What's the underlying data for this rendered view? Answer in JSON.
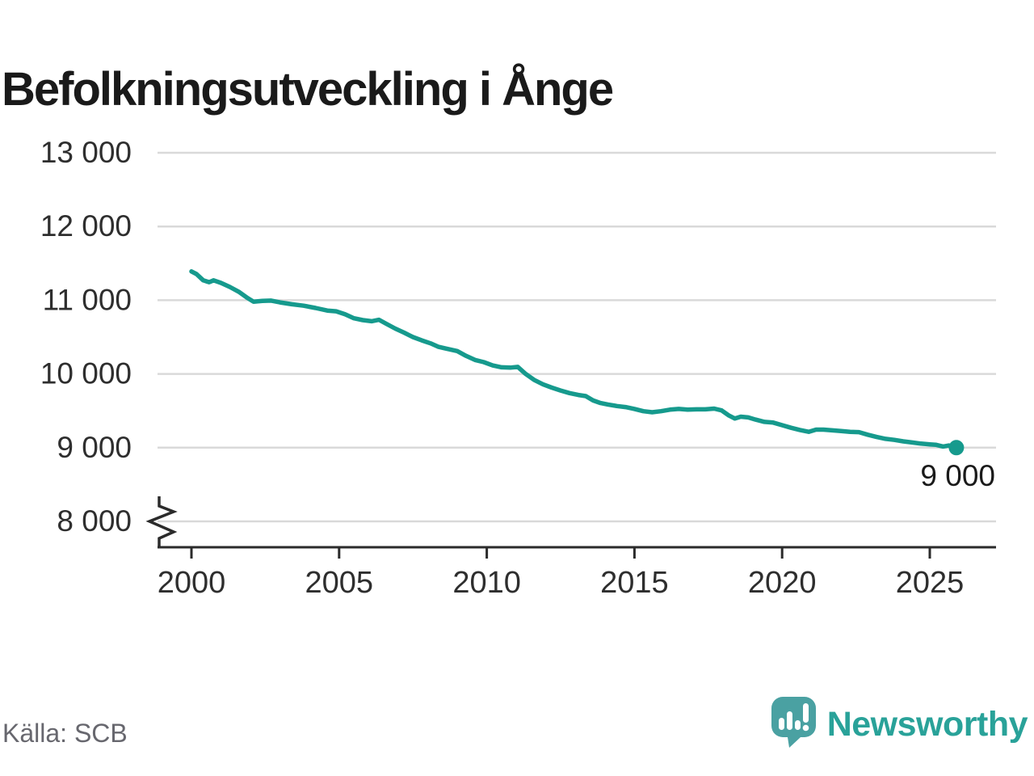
{
  "title": "Befolkningsutveckling i Ånge",
  "source": "Källa: SCB",
  "branding": {
    "wordmark": "Newsworthy",
    "wordmark_color": "#29a299",
    "bubble_color": "#4aa1a2"
  },
  "chart_data": {
    "type": "line",
    "title": "Befolkningsutveckling i Ånge",
    "xlabel": "",
    "ylabel": "",
    "grid": "horizontal",
    "axis_break_at_bottom": true,
    "line_color": "#169a8d",
    "grid_color": "#d9d9d9",
    "axis_color": "#2b2b2b",
    "tick_label_color": "#2e2e2e",
    "xlim": [
      1998.85,
      2027.25
    ],
    "ylim_displayed": [
      8000,
      13000
    ],
    "end_point_label": "9 000",
    "end_point": {
      "x": 2025.9,
      "y": 9000
    },
    "y_ticks": [
      {
        "value": 13000,
        "label": "13 000"
      },
      {
        "value": 12000,
        "label": "12 000"
      },
      {
        "value": 11000,
        "label": "11 000"
      },
      {
        "value": 10000,
        "label": "10 000"
      },
      {
        "value": 9000,
        "label": "9 000"
      },
      {
        "value": 8000,
        "label": "8 000"
      }
    ],
    "x_ticks": [
      {
        "value": 2000,
        "label": "2000"
      },
      {
        "value": 2005,
        "label": "2005"
      },
      {
        "value": 2010,
        "label": "2010"
      },
      {
        "value": 2015,
        "label": "2015"
      },
      {
        "value": 2020,
        "label": "2020"
      },
      {
        "value": 2025,
        "label": "2025"
      }
    ],
    "series": [
      {
        "color": "#169a8d",
        "points": [
          [
            2000.0,
            11390
          ],
          [
            2000.17,
            11355
          ],
          [
            2000.4,
            11270
          ],
          [
            2000.6,
            11245
          ],
          [
            2000.75,
            11270
          ],
          [
            2001.0,
            11235
          ],
          [
            2001.3,
            11180
          ],
          [
            2001.6,
            11115
          ],
          [
            2001.9,
            11030
          ],
          [
            2002.1,
            10980
          ],
          [
            2002.4,
            10990
          ],
          [
            2002.7,
            10995
          ],
          [
            2003.0,
            10970
          ],
          [
            2003.4,
            10945
          ],
          [
            2003.8,
            10925
          ],
          [
            2004.2,
            10895
          ],
          [
            2004.6,
            10860
          ],
          [
            2004.9,
            10850
          ],
          [
            2005.2,
            10810
          ],
          [
            2005.5,
            10755
          ],
          [
            2005.8,
            10730
          ],
          [
            2006.1,
            10715
          ],
          [
            2006.35,
            10735
          ],
          [
            2006.6,
            10680
          ],
          [
            2006.9,
            10615
          ],
          [
            2007.2,
            10560
          ],
          [
            2007.5,
            10500
          ],
          [
            2007.8,
            10455
          ],
          [
            2008.1,
            10415
          ],
          [
            2008.35,
            10370
          ],
          [
            2008.6,
            10345
          ],
          [
            2009.0,
            10310
          ],
          [
            2009.3,
            10245
          ],
          [
            2009.6,
            10190
          ],
          [
            2009.9,
            10160
          ],
          [
            2010.2,
            10115
          ],
          [
            2010.5,
            10090
          ],
          [
            2010.8,
            10085
          ],
          [
            2011.05,
            10095
          ],
          [
            2011.3,
            10005
          ],
          [
            2011.6,
            9920
          ],
          [
            2011.9,
            9860
          ],
          [
            2012.2,
            9815
          ],
          [
            2012.5,
            9775
          ],
          [
            2012.8,
            9740
          ],
          [
            2013.1,
            9715
          ],
          [
            2013.35,
            9700
          ],
          [
            2013.6,
            9640
          ],
          [
            2013.85,
            9605
          ],
          [
            2014.1,
            9585
          ],
          [
            2014.4,
            9565
          ],
          [
            2014.7,
            9550
          ],
          [
            2015.0,
            9525
          ],
          [
            2015.3,
            9495
          ],
          [
            2015.6,
            9480
          ],
          [
            2015.9,
            9495
          ],
          [
            2016.2,
            9515
          ],
          [
            2016.5,
            9525
          ],
          [
            2016.8,
            9515
          ],
          [
            2017.1,
            9520
          ],
          [
            2017.4,
            9520
          ],
          [
            2017.7,
            9530
          ],
          [
            2017.95,
            9505
          ],
          [
            2018.2,
            9435
          ],
          [
            2018.4,
            9395
          ],
          [
            2018.6,
            9420
          ],
          [
            2018.85,
            9410
          ],
          [
            2019.1,
            9380
          ],
          [
            2019.4,
            9350
          ],
          [
            2019.7,
            9340
          ],
          [
            2020.0,
            9305
          ],
          [
            2020.3,
            9270
          ],
          [
            2020.6,
            9240
          ],
          [
            2020.9,
            9215
          ],
          [
            2021.15,
            9245
          ],
          [
            2021.4,
            9245
          ],
          [
            2021.7,
            9235
          ],
          [
            2022.0,
            9225
          ],
          [
            2022.3,
            9215
          ],
          [
            2022.6,
            9210
          ],
          [
            2022.9,
            9175
          ],
          [
            2023.2,
            9145
          ],
          [
            2023.5,
            9120
          ],
          [
            2023.8,
            9105
          ],
          [
            2024.1,
            9085
          ],
          [
            2024.4,
            9070
          ],
          [
            2024.7,
            9055
          ],
          [
            2025.0,
            9045
          ],
          [
            2025.2,
            9040
          ],
          [
            2025.45,
            9015
          ],
          [
            2025.65,
            9030
          ],
          [
            2025.9,
            9000
          ]
        ]
      }
    ]
  }
}
